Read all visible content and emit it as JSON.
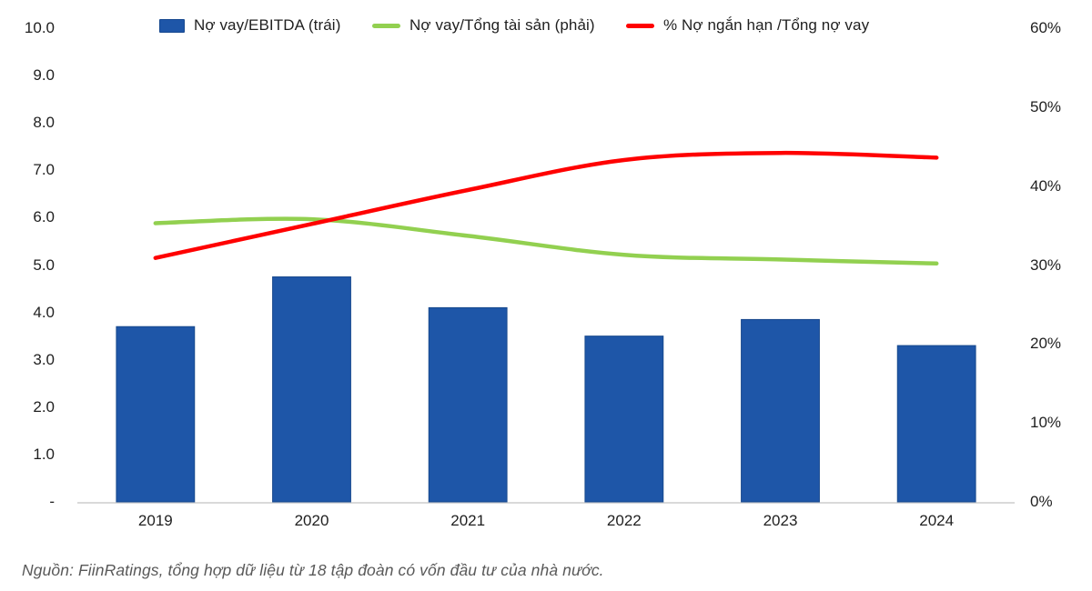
{
  "chart_data": {
    "type": "bar",
    "combo": true,
    "categories": [
      "2019",
      "2020",
      "2021",
      "2022",
      "2023",
      "2024"
    ],
    "series": [
      {
        "name": "Nợ vay/EBITDA (trái)",
        "chart": "bar",
        "axis": "left",
        "color": "#1E56A8",
        "values": [
          3.7,
          4.75,
          4.1,
          3.5,
          3.85,
          3.3
        ]
      },
      {
        "name": "Nợ vay/Tổng tài sản (phải)",
        "chart": "line",
        "axis": "right",
        "color": "#92D050",
        "values": [
          35.3,
          35.8,
          33.7,
          31.3,
          30.7,
          30.2
        ]
      },
      {
        "name": "% Nợ ngắn hạn /Tổng nợ vay",
        "chart": "line",
        "axis": "right",
        "color": "#FF0000",
        "values": [
          30.9,
          35.2,
          39.5,
          43.3,
          44.2,
          43.6
        ]
      }
    ],
    "left_axis": {
      "min": 0,
      "max": 10,
      "tick_labels": [
        "10.0",
        "9.0",
        "8.0",
        "7.0",
        "6.0",
        "5.0",
        "4.0",
        "3.0",
        "2.0",
        "1.0",
        "-"
      ]
    },
    "right_axis": {
      "min": 0,
      "max": 60,
      "tick_labels": [
        "60%",
        "50%",
        "40%",
        "30%",
        "20%",
        "10%",
        "0%"
      ]
    },
    "legend_position": "top",
    "grid": false,
    "axis_line_color": "#D9D9D9",
    "title": "",
    "xlabel": "",
    "ylabel": ""
  },
  "footer": {
    "source_note": "Nguồn: FiinRatings, tổng hợp dữ liệu từ 18 tập đoàn có vốn đầu tư của nhà nước."
  }
}
